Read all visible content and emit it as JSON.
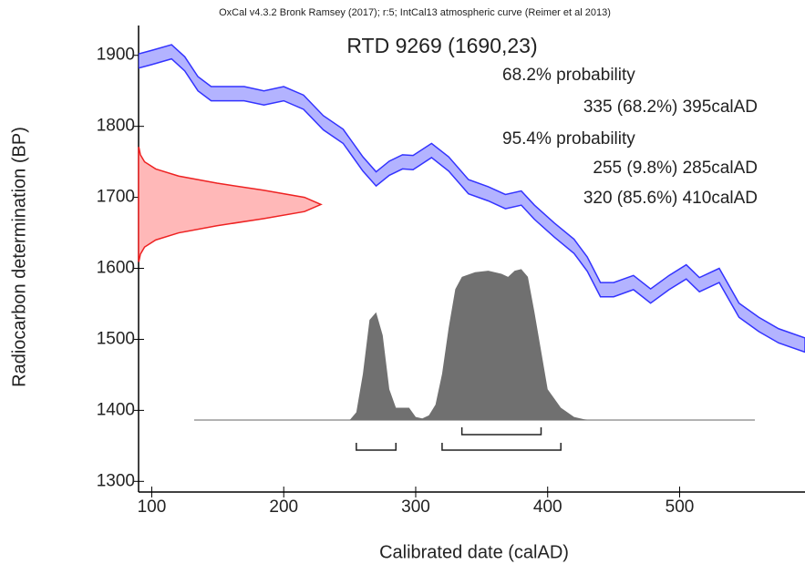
{
  "chart_data": {
    "type": "calibration",
    "header": "OxCal v4.3.2 Bronk Ramsey (2017); r:5; IntCal13 atmospheric curve (Reimer et al 2013)",
    "title": "RTD 9269 (1690,23)",
    "x_label": "Calibrated date (calAD)",
    "y_label": "Radiocarbon determination (BP)",
    "xlim": [
      90,
      595
    ],
    "ylim": [
      1285,
      1942
    ],
    "xticks": [
      100,
      200,
      300,
      400,
      500
    ],
    "yticks": [
      1300,
      1400,
      1500,
      1600,
      1700,
      1800,
      1900
    ],
    "curve": {
      "color": "#3333ff",
      "fill": "#b3b3ff",
      "x": [
        90,
        100,
        115,
        125,
        135,
        145,
        170,
        185,
        200,
        215,
        230,
        245,
        260,
        270,
        280,
        290,
        298,
        312,
        325,
        340,
        355,
        368,
        380,
        390,
        405,
        420,
        430,
        440,
        450,
        465,
        478,
        492,
        505,
        515,
        530,
        545,
        560,
        575,
        595
      ],
      "upper": [
        1902,
        1907,
        1915,
        1898,
        1870,
        1856,
        1856,
        1850,
        1856,
        1844,
        1815,
        1796,
        1757,
        1736,
        1751,
        1760,
        1759,
        1776,
        1757,
        1725,
        1715,
        1704,
        1709,
        1689,
        1664,
        1641,
        1616,
        1580,
        1580,
        1590,
        1571,
        1590,
        1605,
        1587,
        1600,
        1551,
        1531,
        1515,
        1502
      ],
      "lower": [
        1882,
        1887,
        1895,
        1878,
        1850,
        1836,
        1836,
        1830,
        1836,
        1824,
        1795,
        1776,
        1737,
        1716,
        1731,
        1740,
        1739,
        1756,
        1737,
        1705,
        1695,
        1684,
        1689,
        1669,
        1644,
        1621,
        1596,
        1560,
        1560,
        1570,
        1551,
        1570,
        1585,
        1567,
        1580,
        1531,
        1511,
        1495,
        1482
      ]
    },
    "date_distribution": {
      "color": "#ee2222",
      "fill": "#ffb8b8",
      "bp": [
        1770,
        1760,
        1750,
        1740,
        1730,
        1720,
        1710,
        1700,
        1690,
        1680,
        1670,
        1660,
        1650,
        1640,
        1630,
        1620,
        1610
      ],
      "density": [
        0.002,
        0.01,
        0.033,
        0.094,
        0.22,
        0.43,
        0.685,
        0.91,
        1,
        0.91,
        0.685,
        0.43,
        0.22,
        0.094,
        0.033,
        0.01,
        0.002
      ]
    },
    "posterior": {
      "color": "#707070",
      "x": [
        250,
        255,
        260,
        265,
        270,
        275,
        280,
        285,
        290,
        295,
        300,
        305,
        310,
        315,
        320,
        325,
        330,
        335,
        345,
        355,
        365,
        370,
        375,
        380,
        385,
        390,
        395,
        400,
        410,
        420,
        430
      ],
      "density": [
        0,
        0.05,
        0.3,
        0.65,
        0.7,
        0.55,
        0.2,
        0.08,
        0.08,
        0.08,
        0.02,
        0.01,
        0.03,
        0.1,
        0.3,
        0.6,
        0.85,
        0.93,
        0.96,
        0.97,
        0.95,
        0.93,
        0.97,
        0.98,
        0.93,
        0.7,
        0.45,
        0.2,
        0.08,
        0.02,
        0
      ]
    },
    "ranges": [
      {
        "label": "68.2% probability",
        "intervals": [
          {
            "from": 335,
            "to": 395,
            "label": "335 (68.2%) 395calAD"
          }
        ]
      },
      {
        "label": "95.4% probability",
        "intervals": [
          {
            "from": 255,
            "to": 285,
            "label": "255 (9.8%) 285calAD"
          },
          {
            "from": 320,
            "to": 410,
            "label": "320 (85.6%) 410calAD"
          }
        ]
      }
    ]
  }
}
